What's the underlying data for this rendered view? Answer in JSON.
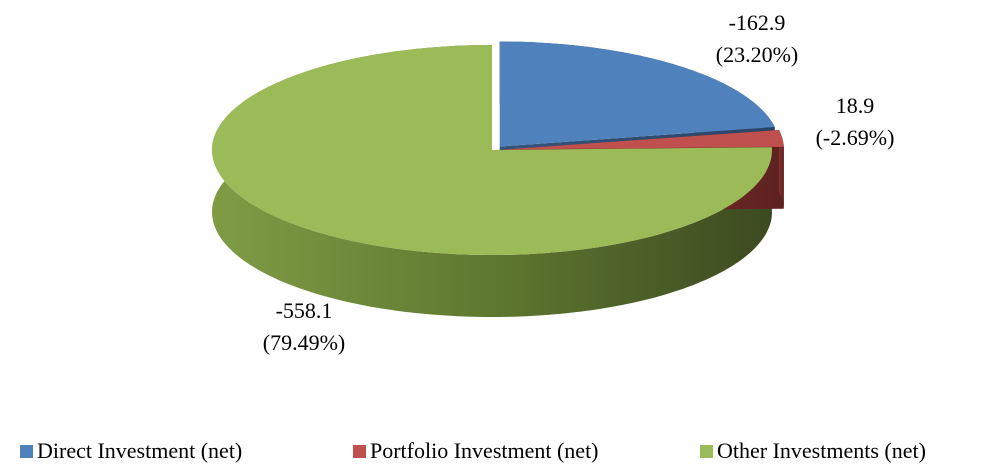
{
  "chart_data": {
    "type": "pie",
    "categories": [
      "Direct Investment (net)",
      "Portfolio Investment (net)",
      "Other Investments (net)"
    ],
    "values": [
      -162.9,
      18.9,
      -558.1
    ],
    "value_labels": [
      "-162.9\n(23.20%)",
      "18.9\n(-2.69%)",
      "-558.1\n(79.49%)"
    ],
    "colors": [
      "#4f81bd",
      "#c0504d",
      "#9bbb59"
    ],
    "legend": "bottom"
  }
}
